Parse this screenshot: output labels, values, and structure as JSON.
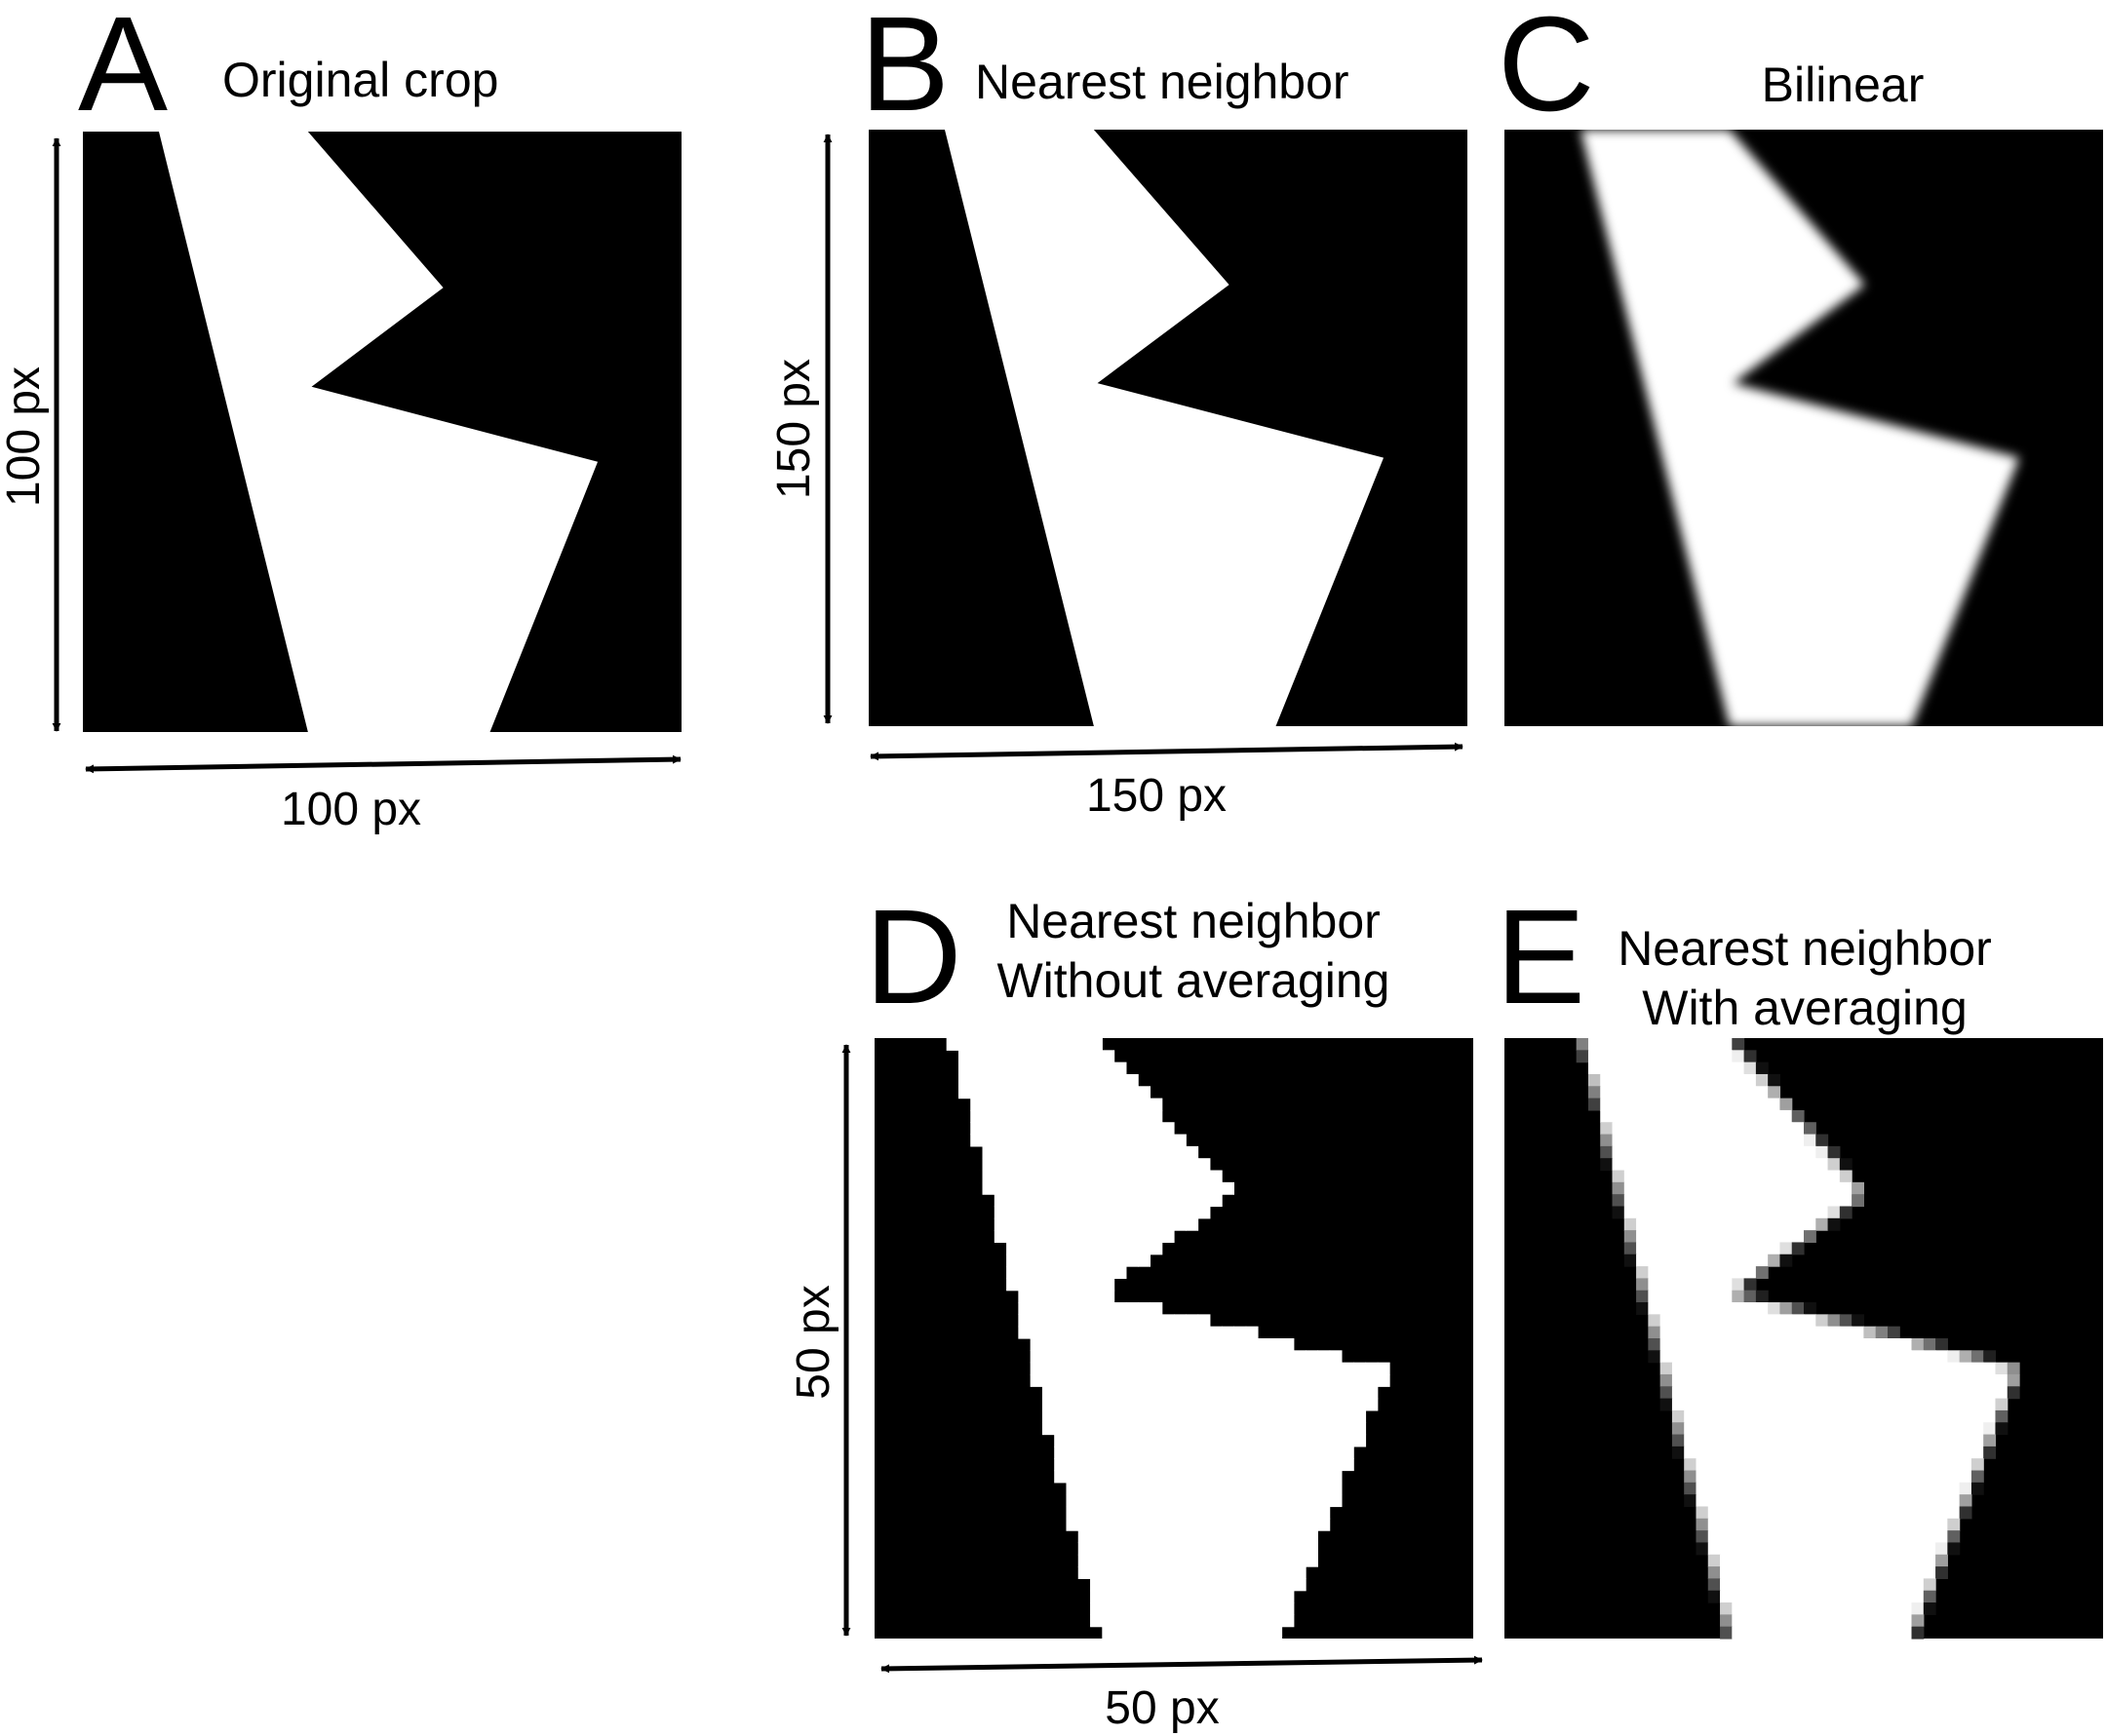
{
  "panels": [
    {
      "id": "A",
      "letter": "A",
      "caption_lines": [
        "Original crop"
      ],
      "rendering": "sharp"
    },
    {
      "id": "B",
      "letter": "B",
      "caption_lines": [
        "Nearest neighbor"
      ],
      "rendering": "staircase-fine"
    },
    {
      "id": "C",
      "letter": "C",
      "caption_lines": [
        "Bilinear"
      ],
      "rendering": "smooth-blurred"
    },
    {
      "id": "D",
      "letter": "D",
      "caption_lines": [
        "Nearest neighbor",
        "Without averaging"
      ],
      "rendering": "staircase-coarse"
    },
    {
      "id": "E",
      "letter": "E",
      "caption_lines": [
        "Nearest neighbor",
        "With averaging"
      ],
      "rendering": "staircase-coarse-gray-edges"
    }
  ],
  "dimension_labels": {
    "a_height": "100 px",
    "a_width": "100 px",
    "b_height": "150 px",
    "b_width": "150 px",
    "d_height": "50 px",
    "d_width": "50 px"
  },
  "colors": {
    "foreground": "#000000",
    "background": "#ffffff",
    "edge_gray": "#8c8c8c"
  }
}
